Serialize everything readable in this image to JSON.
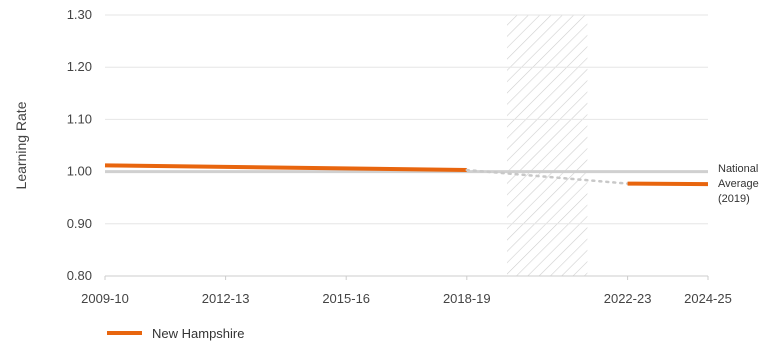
{
  "chart_data": {
    "type": "line",
    "title": "",
    "xlabel": "",
    "ylabel": "Learning Rate",
    "x_start": 2009,
    "x_end": 2024,
    "x_ticks": [
      {
        "x": 2009,
        "label": "2009-10"
      },
      {
        "x": 2012,
        "label": "2012-13"
      },
      {
        "x": 2015,
        "label": "2015-16"
      },
      {
        "x": 2018,
        "label": "2018-19"
      },
      {
        "x": 2022,
        "label": "2022-23"
      },
      {
        "x": 2024,
        "label": "2024-25"
      }
    ],
    "ylim": [
      0.8,
      1.3
    ],
    "y_ticks": [
      "0.80",
      "0.90",
      "1.00",
      "1.10",
      "1.20",
      "1.30"
    ],
    "grid": "horizontal",
    "shaded_region": {
      "from": 2019,
      "to": 2021,
      "pattern": "diagonal-hatch"
    },
    "reference_line": {
      "value": 1.0,
      "label": [
        "National",
        "Average",
        "(2019)"
      ],
      "color": "#d0d0d0"
    },
    "series": [
      {
        "name": "New Hampshire",
        "color": "#e8650e",
        "segments": [
          {
            "style": "solid",
            "points": [
              {
                "x": 2009,
                "y": 1.012
              },
              {
                "x": 2018,
                "y": 1.003
              }
            ]
          },
          {
            "style": "dotted",
            "points": [
              {
                "x": 2018,
                "y": 1.003
              },
              {
                "x": 2022,
                "y": 0.977
              }
            ]
          },
          {
            "style": "solid",
            "points": [
              {
                "x": 2022,
                "y": 0.977
              },
              {
                "x": 2024,
                "y": 0.976
              }
            ]
          }
        ]
      }
    ],
    "legend_position": "bottom-left"
  }
}
